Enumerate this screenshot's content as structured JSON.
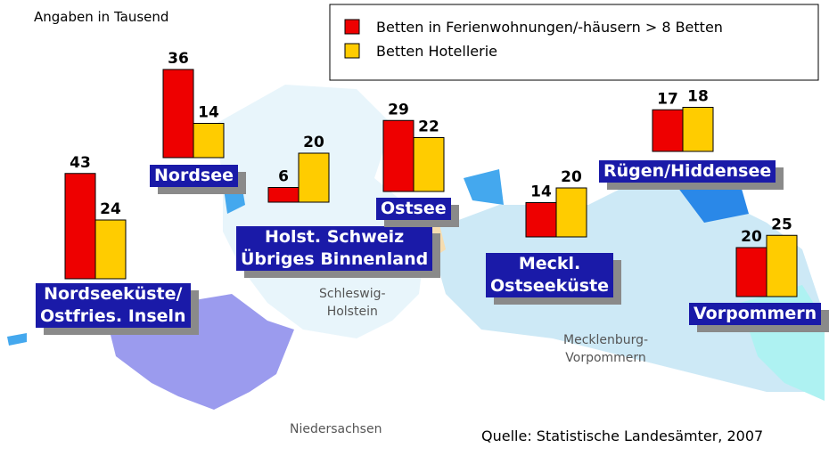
{
  "chart_data": {
    "type": "bar",
    "note": "Angaben in Tausend",
    "source": "Quelle: Statistische Landesämter, 2007",
    "categories": [
      "Nordseeküste/\nOstfries. Inseln",
      "Nordsee",
      "Holst. Schweiz\nÜbriges Binnenland",
      "Ostsee",
      "Meckl.\nOstseeküste",
      "Rügen/Hiddensee",
      "Vorpommern"
    ],
    "series": [
      {
        "name": "Betten in Ferienwohnungen/-häusern > 8 Betten",
        "color": "#ee0000",
        "values": [
          43,
          36,
          6,
          29,
          14,
          17,
          20
        ]
      },
      {
        "name": "Betten Hotellerie",
        "color": "#ffcc00",
        "values": [
          24,
          14,
          20,
          22,
          20,
          18,
          25
        ]
      }
    ],
    "map_labels": [
      "Schleswig-\nHolstein",
      "Mecklenburg-\nVorpommern",
      "Niedersachsen"
    ]
  }
}
